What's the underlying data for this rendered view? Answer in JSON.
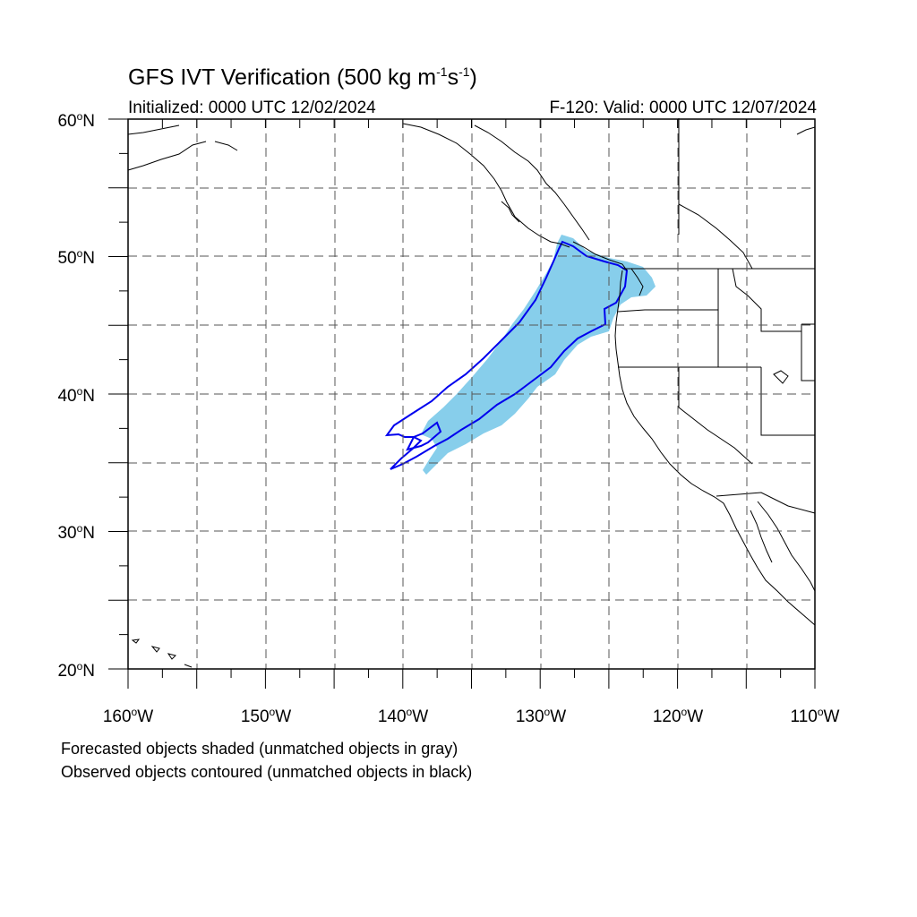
{
  "title": {
    "main": "GFS IVT Verification (500 kg m",
    "exp1": "-1",
    "mid": "s",
    "exp2": "-1",
    "close": ")"
  },
  "subtitle": {
    "initialized": "Initialized: 0000 UTC 12/02/2024",
    "valid": "F-120: Valid: 0000 UTC 12/07/2024"
  },
  "axes": {
    "lat_labels": [
      "60",
      "50",
      "40",
      "30",
      "20"
    ],
    "lat_suffix": "N",
    "lon_labels": [
      "160",
      "150",
      "140",
      "130",
      "120",
      "110"
    ],
    "lon_suffix": "W",
    "lat_range": [
      20,
      60
    ],
    "lon_range": [
      -160,
      -110
    ],
    "grid": "dashed every 5 degrees"
  },
  "legend_notes": {
    "forecast": "Forecasted objects shaded (unmatched objects in gray)",
    "observed": "Observed objects contoured (unmatched objects in black)"
  },
  "colors": {
    "forecast_fill": "#87ceeb",
    "observed_contour": "#0000ee",
    "coastline": "#000000",
    "grid": "#555555"
  }
}
